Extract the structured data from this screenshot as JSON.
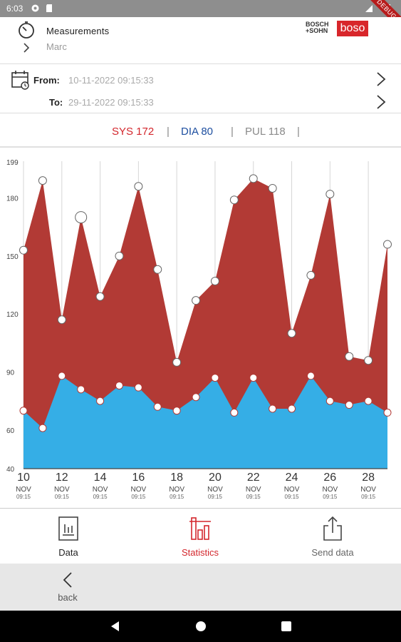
{
  "status_bar": {
    "time": "6:03",
    "debug_label": "DEBUG"
  },
  "header": {
    "title": "Measurements",
    "user": "Marc",
    "brand_small_1": "BOSCH",
    "brand_small_2": "+SOHN",
    "brand_logo": "boso"
  },
  "range": {
    "from_label": "From:",
    "from_value": "10-11-2022 09:15:33",
    "to_label": "To:",
    "to_value": "29-11-2022 09:15:33"
  },
  "legend": {
    "sys": "SYS 172",
    "dia": "DIA 80",
    "pul": "PUL 118",
    "separator": "|"
  },
  "colors": {
    "sys": "#b23a35",
    "dia": "#35aee6",
    "sys_text": "#d3262c",
    "dia_text": "#1e4fa0",
    "pul_text": "#8a8a8a",
    "accent": "#d3262c"
  },
  "chart_data": {
    "type": "area",
    "yticks": [
      40,
      60,
      90,
      120,
      150,
      180,
      199
    ],
    "ylim": [
      40,
      199
    ],
    "x": [
      "10",
      "11",
      "12",
      "13",
      "14",
      "15",
      "16",
      "17",
      "18",
      "19",
      "20",
      "21",
      "22",
      "23",
      "24",
      "25",
      "26",
      "27",
      "28",
      "29"
    ],
    "xtick_days": [
      "10",
      "12",
      "14",
      "16",
      "18",
      "20",
      "22",
      "24",
      "26",
      "28"
    ],
    "xtick_month": "NOV",
    "xtick_time": "09:15",
    "series": [
      {
        "key": "sys",
        "values": [
          153,
          189,
          117,
          170,
          129,
          150,
          186,
          143,
          95,
          127,
          137,
          179,
          190,
          185,
          110,
          140,
          182,
          98,
          96,
          156
        ]
      },
      {
        "key": "dia",
        "values": [
          70,
          61,
          88,
          81,
          75,
          83,
          82,
          72,
          70,
          77,
          87,
          69,
          87,
          71,
          71,
          88,
          75,
          73,
          75,
          69
        ]
      }
    ]
  },
  "tabs": [
    {
      "label": "Data",
      "active": false
    },
    {
      "label": "Statistics",
      "active": true
    },
    {
      "label": "Send data",
      "active": false
    }
  ],
  "back": {
    "label": "back"
  }
}
